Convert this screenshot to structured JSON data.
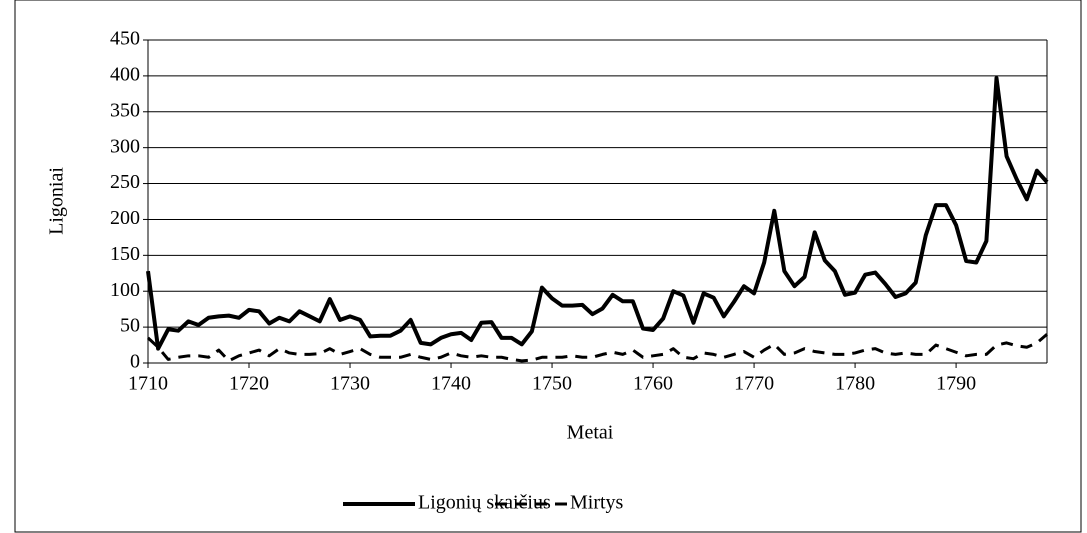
{
  "chart_data": {
    "type": "line",
    "x_label": "Metai",
    "y_label": "Ligoniai",
    "x": [
      1710,
      1711,
      1712,
      1713,
      1714,
      1715,
      1716,
      1717,
      1718,
      1719,
      1720,
      1721,
      1722,
      1723,
      1724,
      1725,
      1726,
      1727,
      1728,
      1729,
      1730,
      1731,
      1732,
      1733,
      1734,
      1735,
      1736,
      1737,
      1738,
      1739,
      1740,
      1741,
      1742,
      1743,
      1744,
      1745,
      1746,
      1747,
      1748,
      1749,
      1750,
      1751,
      1752,
      1753,
      1754,
      1755,
      1756,
      1757,
      1758,
      1759,
      1760,
      1761,
      1762,
      1763,
      1764,
      1765,
      1766,
      1767,
      1768,
      1769,
      1770,
      1771,
      1772,
      1773,
      1774,
      1775,
      1776,
      1777,
      1778,
      1779,
      1780,
      1781,
      1782,
      1783,
      1784,
      1785,
      1786,
      1787,
      1788,
      1789,
      1790,
      1791,
      1792,
      1793,
      1794,
      1795,
      1796,
      1797,
      1798,
      1799
    ],
    "series": [
      {
        "name": "Ligonių skaičius",
        "color": "#000000",
        "dash": "solid",
        "values": [
          128,
          20,
          47,
          45,
          58,
          53,
          63,
          65,
          66,
          63,
          74,
          72,
          55,
          63,
          58,
          72,
          65,
          58,
          89,
          60,
          65,
          60,
          37,
          38,
          38,
          45,
          60,
          28,
          26,
          35,
          40,
          42,
          32,
          56,
          57,
          35,
          35,
          26,
          44,
          105,
          90,
          80,
          80,
          81,
          68,
          76,
          95,
          86,
          86,
          48,
          46,
          62,
          100,
          94,
          56,
          97,
          91,
          65,
          85,
          107,
          97,
          140,
          212,
          128,
          107,
          120,
          182,
          143,
          128,
          95,
          98,
          123,
          126,
          110,
          92,
          97,
          112,
          178,
          220,
          220,
          192,
          142,
          140,
          170,
          397,
          288,
          256,
          228,
          268,
          252
        ]
      },
      {
        "name": "Mirtys",
        "color": "#000000",
        "dash": "dashed",
        "values": [
          35,
          22,
          5,
          8,
          10,
          10,
          8,
          18,
          3,
          10,
          14,
          18,
          10,
          20,
          14,
          12,
          12,
          13,
          20,
          12,
          16,
          20,
          12,
          8,
          8,
          8,
          12,
          8,
          5,
          8,
          14,
          10,
          8,
          10,
          8,
          8,
          5,
          3,
          4,
          8,
          8,
          8,
          10,
          8,
          8,
          12,
          15,
          12,
          18,
          8,
          10,
          12,
          20,
          8,
          6,
          14,
          12,
          8,
          12,
          16,
          8,
          18,
          26,
          12,
          14,
          20,
          16,
          14,
          12,
          12,
          14,
          18,
          20,
          14,
          12,
          14,
          12,
          12,
          25,
          20,
          15,
          10,
          12,
          12,
          25,
          28,
          24,
          22,
          28,
          40
        ]
      }
    ],
    "xlim": [
      1710,
      1799
    ],
    "xticks": [
      1710,
      1720,
      1730,
      1740,
      1750,
      1760,
      1770,
      1780,
      1790
    ],
    "ylim": [
      0,
      450
    ],
    "yticks": [
      0,
      50,
      100,
      150,
      200,
      250,
      300,
      350,
      400,
      450
    ],
    "grid": true,
    "legend": "bottom"
  }
}
